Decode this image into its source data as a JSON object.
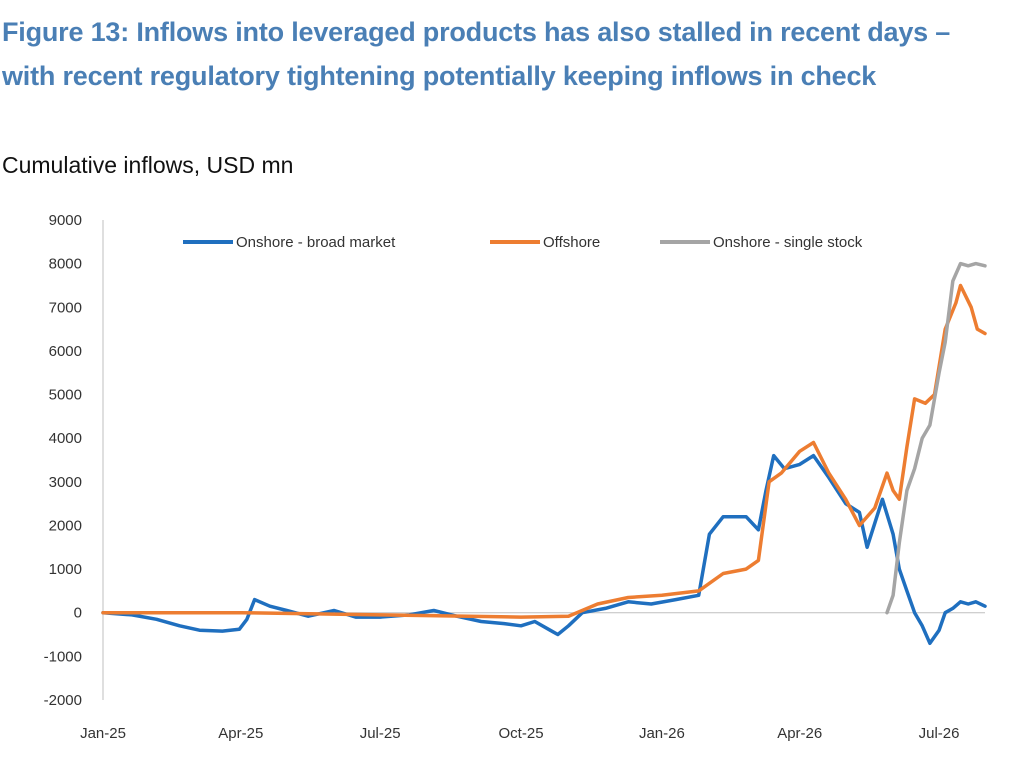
{
  "figure": {
    "title": "Figure 13: Inflows into leveraged products has also stalled in recent days – with recent regulatory tightening potentially keeping inflows in check",
    "subtitle": "Cumulative inflows, USD mn"
  },
  "colors": {
    "title": "#4a7fb5",
    "onshore_broad": "#1f6fbf",
    "offshore": "#ed7d31",
    "onshore_single": "#a5a5a5",
    "axis": "#bfbfbf"
  },
  "chart_data": {
    "type": "line",
    "title": "",
    "xlabel": "",
    "ylabel": "",
    "ylim": [
      -2000,
      9000
    ],
    "y_ticks": [
      -2000,
      -1000,
      0,
      1000,
      2000,
      3000,
      4000,
      5000,
      6000,
      7000,
      8000,
      9000
    ],
    "x_ticks": [
      "Jan-25",
      "Apr-25",
      "Jul-25",
      "Oct-25",
      "Jan-26",
      "Apr-26",
      "Jul-26"
    ],
    "x_tick_dates": [
      "2025-01-01",
      "2025-04-01",
      "2025-07-01",
      "2025-10-01",
      "2026-01-01",
      "2026-04-01",
      "2026-07-01"
    ],
    "xlim": [
      "2025-01-01",
      "2026-07-31"
    ],
    "grid": false,
    "zero_line": true,
    "legend_position": "top",
    "series": [
      {
        "name": "Onshore - broad market",
        "color": "#1f6fbf",
        "points": [
          [
            "2025-01-01",
            0
          ],
          [
            "2025-01-20",
            -50
          ],
          [
            "2025-02-05",
            -150
          ],
          [
            "2025-02-20",
            -300
          ],
          [
            "2025-03-05",
            -400
          ],
          [
            "2025-03-20",
            -420
          ],
          [
            "2025-03-31",
            -380
          ],
          [
            "2025-04-05",
            -150
          ],
          [
            "2025-04-10",
            300
          ],
          [
            "2025-04-20",
            150
          ],
          [
            "2025-05-01",
            50
          ],
          [
            "2025-05-15",
            -80
          ],
          [
            "2025-06-01",
            50
          ],
          [
            "2025-06-15",
            -100
          ],
          [
            "2025-07-01",
            -100
          ],
          [
            "2025-07-20",
            -50
          ],
          [
            "2025-08-05",
            50
          ],
          [
            "2025-08-20",
            -80
          ],
          [
            "2025-09-05",
            -200
          ],
          [
            "2025-09-20",
            -250
          ],
          [
            "2025-10-01",
            -300
          ],
          [
            "2025-10-10",
            -200
          ],
          [
            "2025-10-20",
            -400
          ],
          [
            "2025-10-25",
            -500
          ],
          [
            "2025-11-01",
            -300
          ],
          [
            "2025-11-10",
            0
          ],
          [
            "2025-11-25",
            100
          ],
          [
            "2025-12-10",
            250
          ],
          [
            "2025-12-25",
            200
          ],
          [
            "2026-01-10",
            300
          ],
          [
            "2026-01-25",
            400
          ],
          [
            "2026-02-01",
            1800
          ],
          [
            "2026-02-10",
            2200
          ],
          [
            "2026-02-25",
            2200
          ],
          [
            "2026-03-05",
            1900
          ],
          [
            "2026-03-10",
            2800
          ],
          [
            "2026-03-15",
            3600
          ],
          [
            "2026-03-22",
            3300
          ],
          [
            "2026-04-01",
            3400
          ],
          [
            "2026-04-10",
            3600
          ],
          [
            "2026-04-20",
            3100
          ],
          [
            "2026-05-01",
            2500
          ],
          [
            "2026-05-10",
            2300
          ],
          [
            "2026-05-15",
            1500
          ],
          [
            "2026-05-25",
            2600
          ],
          [
            "2026-06-01",
            1800
          ],
          [
            "2026-06-05",
            1000
          ],
          [
            "2026-06-10",
            500
          ],
          [
            "2026-06-15",
            0
          ],
          [
            "2026-06-20",
            -300
          ],
          [
            "2026-06-25",
            -700
          ],
          [
            "2026-07-01",
            -400
          ],
          [
            "2026-07-05",
            0
          ],
          [
            "2026-07-10",
            100
          ],
          [
            "2026-07-15",
            250
          ],
          [
            "2026-07-20",
            200
          ],
          [
            "2026-07-25",
            250
          ],
          [
            "2026-07-31",
            150
          ]
        ]
      },
      {
        "name": "Offshore",
        "color": "#ed7d31",
        "points": [
          [
            "2025-01-01",
            0
          ],
          [
            "2025-04-01",
            0
          ],
          [
            "2025-07-01",
            -50
          ],
          [
            "2025-10-01",
            -100
          ],
          [
            "2025-11-01",
            -80
          ],
          [
            "2025-11-20",
            200
          ],
          [
            "2025-12-10",
            350
          ],
          [
            "2026-01-01",
            400
          ],
          [
            "2026-01-25",
            500
          ],
          [
            "2026-02-10",
            900
          ],
          [
            "2026-02-25",
            1000
          ],
          [
            "2026-03-05",
            1200
          ],
          [
            "2026-03-12",
            3000
          ],
          [
            "2026-03-20",
            3200
          ],
          [
            "2026-04-01",
            3700
          ],
          [
            "2026-04-10",
            3900
          ],
          [
            "2026-04-20",
            3200
          ],
          [
            "2026-05-01",
            2600
          ],
          [
            "2026-05-10",
            2000
          ],
          [
            "2026-05-20",
            2400
          ],
          [
            "2026-05-28",
            3200
          ],
          [
            "2026-06-01",
            2800
          ],
          [
            "2026-06-05",
            2600
          ],
          [
            "2026-06-10",
            3800
          ],
          [
            "2026-06-15",
            4900
          ],
          [
            "2026-06-22",
            4800
          ],
          [
            "2026-06-28",
            5000
          ],
          [
            "2026-07-05",
            6500
          ],
          [
            "2026-07-12",
            7100
          ],
          [
            "2026-07-15",
            7500
          ],
          [
            "2026-07-22",
            7000
          ],
          [
            "2026-07-26",
            6500
          ],
          [
            "2026-07-31",
            6400
          ]
        ]
      },
      {
        "name": "Onshore - single stock",
        "color": "#a5a5a5",
        "points": [
          [
            "2026-05-28",
            0
          ],
          [
            "2026-06-01",
            400
          ],
          [
            "2026-06-05",
            1600
          ],
          [
            "2026-06-10",
            2800
          ],
          [
            "2026-06-15",
            3300
          ],
          [
            "2026-06-20",
            4000
          ],
          [
            "2026-06-25",
            4300
          ],
          [
            "2026-07-01",
            5500
          ],
          [
            "2026-07-05",
            6200
          ],
          [
            "2026-07-10",
            7600
          ],
          [
            "2026-07-15",
            8000
          ],
          [
            "2026-07-20",
            7950
          ],
          [
            "2026-07-25",
            8000
          ],
          [
            "2026-07-31",
            7950
          ]
        ]
      }
    ]
  }
}
